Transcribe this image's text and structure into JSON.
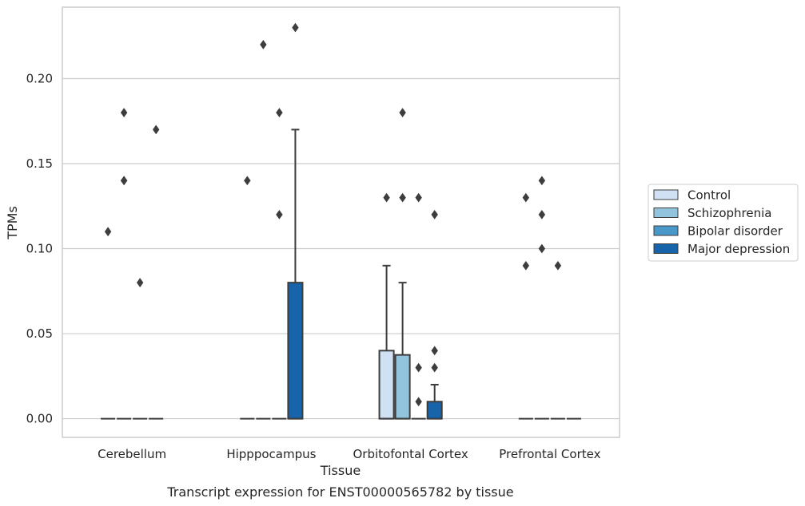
{
  "chart_data": {
    "type": "box",
    "title": "Transcript expression for ENST00000565782 by tissue",
    "xlabel": "Tissue",
    "ylabel": "TPMs",
    "ylim": [
      -0.011,
      0.242
    ],
    "yticks": [
      "0.00",
      "0.05",
      "0.10",
      "0.15",
      "0.20"
    ],
    "ytick_values": [
      0.0,
      0.05,
      0.1,
      0.15,
      0.2
    ],
    "grid": true,
    "legend_position": "right",
    "categories": [
      "Cerebellum",
      "Hipppocampus",
      "Orbitofontal Cortex",
      "Prefrontal Cortex"
    ],
    "series": [
      {
        "name": "Control",
        "color": "#cfe1f2",
        "boxes": [
          {
            "q1": 0,
            "median": 0,
            "q3": 0,
            "whisker_low": 0,
            "whisker_high": 0,
            "outliers": [
              0.11
            ]
          },
          {
            "q1": 0,
            "median": 0,
            "q3": 0,
            "whisker_low": 0,
            "whisker_high": 0,
            "outliers": [
              0.14
            ]
          },
          {
            "q1": 0,
            "median": 0,
            "q3": 0.04,
            "whisker_low": 0,
            "whisker_high": 0.09,
            "outliers": [
              0.13
            ]
          },
          {
            "q1": 0,
            "median": 0,
            "q3": 0,
            "whisker_low": 0,
            "whisker_high": 0,
            "outliers": [
              0.13,
              0.09
            ]
          }
        ]
      },
      {
        "name": "Schizophrenia",
        "color": "#93c4de",
        "boxes": [
          {
            "q1": 0,
            "median": 0,
            "q3": 0,
            "whisker_low": 0,
            "whisker_high": 0,
            "outliers": [
              0.18,
              0.14,
              0.14
            ]
          },
          {
            "q1": 0,
            "median": 0,
            "q3": 0,
            "whisker_low": 0,
            "whisker_high": 0,
            "outliers": [
              0.22
            ]
          },
          {
            "q1": 0,
            "median": 0,
            "q3": 0.0375,
            "whisker_low": 0,
            "whisker_high": 0.08,
            "outliers": [
              0.18,
              0.13
            ]
          },
          {
            "q1": 0,
            "median": 0,
            "q3": 0,
            "whisker_low": 0,
            "whisker_high": 0,
            "outliers": [
              0.14,
              0.12,
              0.1
            ]
          }
        ]
      },
      {
        "name": "Bipolar disorder",
        "color": "#4a98c9",
        "boxes": [
          {
            "q1": 0,
            "median": 0,
            "q3": 0,
            "whisker_low": 0,
            "whisker_high": 0,
            "outliers": [
              0.08
            ]
          },
          {
            "q1": 0,
            "median": 0,
            "q3": 0,
            "whisker_low": 0,
            "whisker_high": 0,
            "outliers": [
              0.18,
              0.12
            ]
          },
          {
            "q1": 0,
            "median": 0,
            "q3": 0,
            "whisker_low": 0,
            "whisker_high": 0,
            "outliers": [
              0.13,
              0.03,
              0.01
            ]
          },
          {
            "q1": 0,
            "median": 0,
            "q3": 0,
            "whisker_low": 0,
            "whisker_high": 0,
            "outliers": [
              0.09
            ]
          }
        ]
      },
      {
        "name": "Major depression",
        "color": "#1764ab",
        "boxes": [
          {
            "q1": 0,
            "median": 0,
            "q3": 0,
            "whisker_low": 0,
            "whisker_high": 0,
            "outliers": [
              0.17
            ]
          },
          {
            "q1": 0,
            "median": 0,
            "q3": 0.08,
            "whisker_low": 0,
            "whisker_high": 0.17,
            "outliers": [
              0.23
            ]
          },
          {
            "q1": 0,
            "median": 0,
            "q3": 0.01,
            "whisker_low": 0,
            "whisker_high": 0.02,
            "outliers": [
              0.12,
              0.04,
              0.03
            ]
          },
          {
            "q1": 0,
            "median": 0,
            "q3": 0,
            "whisker_low": 0,
            "whisker_high": 0,
            "outliers": []
          }
        ]
      }
    ]
  }
}
